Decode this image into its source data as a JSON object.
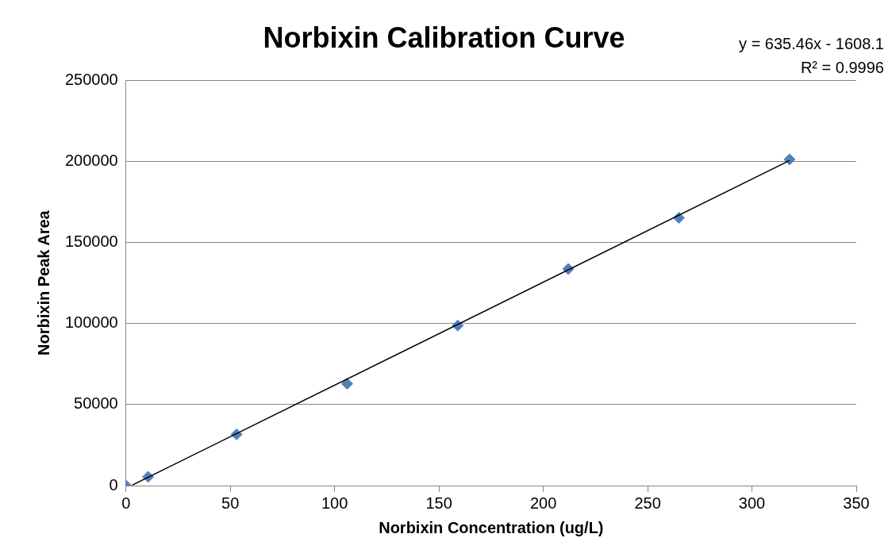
{
  "chart_data": {
    "type": "scatter",
    "title": "Norbixin Calibration Curve",
    "xlabel": "Norbixin Concentration (ug/L)",
    "ylabel": "Norbixin Peak Area",
    "annotations": [
      "y = 635.46x - 1608.1",
      "R² = 0.9996"
    ],
    "series": [
      {
        "color": "#4f81bd",
        "x": [
          0,
          10.6,
          53,
          106,
          159,
          212,
          265,
          318
        ],
        "values": [
          0,
          5400,
          31600,
          62800,
          98700,
          133600,
          165200,
          201200
        ],
        "marker": "diamond"
      },
      {
        "type": "line",
        "color": "#000000",
        "x": [
          3,
          318
        ],
        "values": [
          300,
          200500
        ],
        "marker": "none"
      }
    ],
    "xlim": [
      0,
      350
    ],
    "xticks": [
      0,
      50,
      100,
      150,
      200,
      250,
      300,
      350
    ],
    "ylim": [
      0,
      250000
    ],
    "yticks": [
      0,
      50000,
      100000,
      150000,
      200000,
      250000
    ],
    "grid": "y",
    "legend": false
  }
}
